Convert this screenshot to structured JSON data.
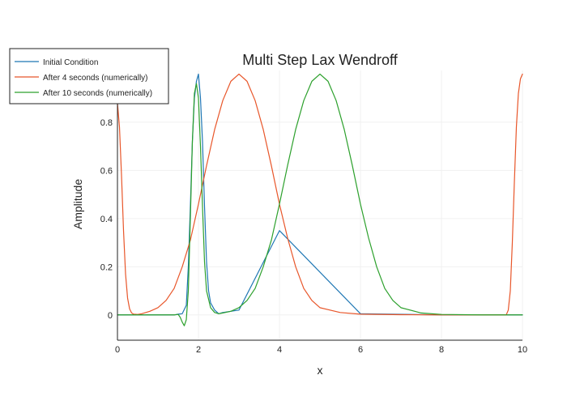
{
  "chart_data": {
    "type": "line",
    "title": "Multi Step Lax Wendroff",
    "xlabel": "x",
    "ylabel": "Amplitude",
    "xlim": [
      0,
      10
    ],
    "ylim": [
      -0.105,
      1.015
    ],
    "xticks": [
      0,
      2,
      4,
      6,
      8,
      10
    ],
    "xtick_labels": [
      "0",
      "2",
      "4",
      "6",
      "8",
      "10"
    ],
    "yticks": [
      0,
      0.2,
      0.4,
      0.6,
      0.8
    ],
    "ytick_labels": [
      "0",
      "0.2",
      "0.4",
      "0.6",
      "0.8"
    ],
    "grid": true,
    "legend_position": "top-left",
    "series": [
      {
        "name": "Initial Condition",
        "color": "#1f77b4",
        "x": [
          0,
          1.4,
          1.5,
          1.6,
          1.7,
          1.75,
          1.8,
          1.85,
          1.9,
          1.95,
          2.0,
          2.05,
          2.1,
          2.15,
          2.2,
          2.25,
          2.3,
          2.4,
          2.5,
          2.6,
          3.0,
          4.0,
          6.0,
          8.0,
          10.0
        ],
        "y": [
          0,
          0,
          0.003,
          0.005,
          0.04,
          0.2,
          0.45,
          0.72,
          0.9,
          0.97,
          1.0,
          0.9,
          0.72,
          0.45,
          0.22,
          0.1,
          0.05,
          0.02,
          0.005,
          0.01,
          0.02,
          0.35,
          0.005,
          0,
          0
        ]
      },
      {
        "name": "After 4 seconds (numerically)",
        "color": "#e8562a",
        "x": [
          0,
          0.05,
          0.1,
          0.15,
          0.2,
          0.25,
          0.3,
          0.35,
          0.4,
          0.5,
          0.6,
          0.8,
          1.0,
          1.2,
          1.4,
          1.6,
          1.8,
          2.0,
          2.2,
          2.4,
          2.6,
          2.8,
          3.0,
          3.2,
          3.4,
          3.6,
          3.8,
          4.0,
          4.2,
          4.4,
          4.6,
          4.8,
          5.0,
          5.5,
          6.0,
          7.0,
          8.0,
          9.0,
          9.6,
          9.65,
          9.7,
          9.75,
          9.8,
          9.85,
          9.9,
          9.95,
          10.0
        ],
        "y": [
          0.88,
          0.78,
          0.58,
          0.35,
          0.17,
          0.07,
          0.025,
          0.008,
          0.003,
          0.002,
          0.005,
          0.015,
          0.03,
          0.06,
          0.11,
          0.2,
          0.31,
          0.46,
          0.62,
          0.77,
          0.89,
          0.97,
          1.0,
          0.97,
          0.89,
          0.77,
          0.62,
          0.46,
          0.32,
          0.2,
          0.11,
          0.06,
          0.03,
          0.01,
          0.003,
          0.001,
          0.0,
          0.0,
          0.0,
          0.02,
          0.1,
          0.3,
          0.55,
          0.78,
          0.92,
          0.98,
          1.0
        ]
      },
      {
        "name": "After 10 seconds (numerically)",
        "color": "#2ca02c",
        "x": [
          0,
          1.4,
          1.5,
          1.55,
          1.6,
          1.65,
          1.7,
          1.75,
          1.8,
          1.85,
          1.9,
          1.95,
          2.0,
          2.05,
          2.1,
          2.15,
          2.2,
          2.3,
          2.4,
          2.5,
          2.6,
          2.8,
          3.0,
          3.2,
          3.4,
          3.6,
          3.8,
          4.0,
          4.2,
          4.4,
          4.6,
          4.8,
          5.0,
          5.2,
          5.4,
          5.6,
          5.8,
          6.0,
          6.2,
          6.4,
          6.6,
          6.8,
          7.0,
          7.5,
          8.0,
          9.0,
          10.0
        ],
        "y": [
          0,
          0,
          0.002,
          -0.01,
          -0.03,
          -0.045,
          -0.02,
          0.1,
          0.4,
          0.72,
          0.92,
          0.96,
          0.9,
          0.7,
          0.45,
          0.22,
          0.1,
          0.03,
          0.01,
          0.005,
          0.008,
          0.015,
          0.03,
          0.06,
          0.11,
          0.2,
          0.31,
          0.46,
          0.62,
          0.77,
          0.89,
          0.97,
          1.0,
          0.97,
          0.89,
          0.77,
          0.62,
          0.46,
          0.32,
          0.2,
          0.11,
          0.06,
          0.03,
          0.008,
          0.002,
          0.0,
          0.0
        ]
      }
    ]
  },
  "colors": {
    "grid": "#f0f0f0",
    "axis": "#222222",
    "text": "#222222"
  }
}
